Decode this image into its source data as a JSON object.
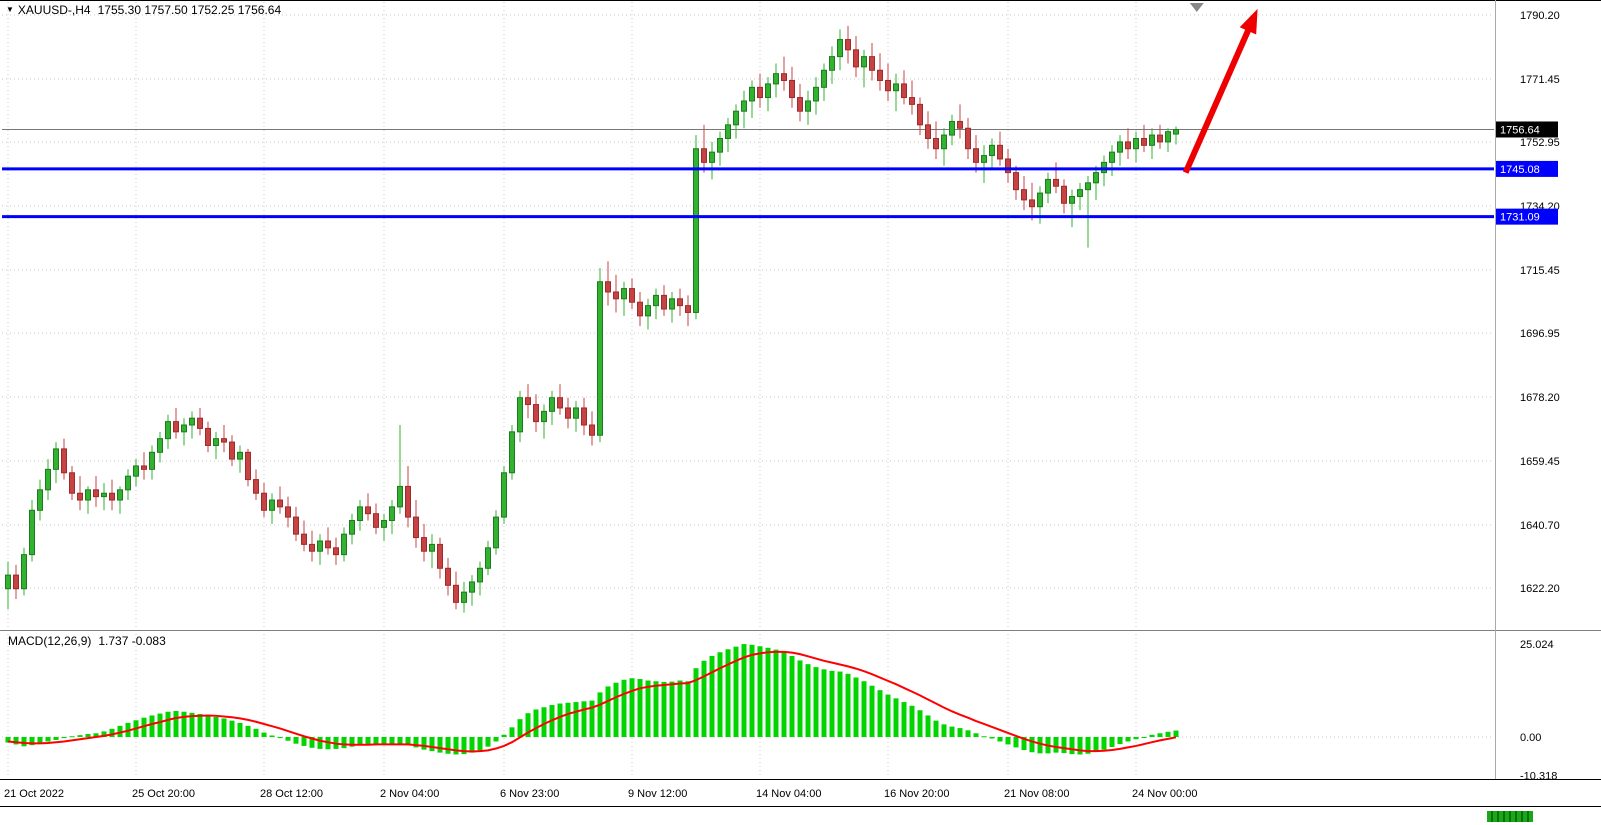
{
  "window": {
    "marker_icon": "▼",
    "symbol_period": "XAUUSD-,H4",
    "ohlc": "1755.30 1757.50 1752.25 1756.64"
  },
  "indicator": {
    "label": "MACD(12,26,9)",
    "values": "1.737 -0.083"
  },
  "colors": {
    "bull": "#31b331",
    "bull_border": "#1d7a1d",
    "bear": "#c74343",
    "bear_border": "#9e2b2b",
    "hline": "#0000ff",
    "current_tag_bg": "#000000",
    "macd_hist": "#00d500",
    "macd_signal": "#ff0000",
    "arrow": "#ee0000"
  },
  "price_axis": {
    "ticks": [
      "1790.20",
      "1771.45",
      "1752.95",
      "1734.20",
      "1715.45",
      "1696.95",
      "1678.20",
      "1659.45",
      "1640.70",
      "1622.20"
    ],
    "current": {
      "value": 1756.64,
      "label": "1756.64"
    }
  },
  "macd_axis": {
    "ticks": [
      {
        "value": 25.024,
        "label": "25.024"
      },
      {
        "value": 0,
        "label": "0.00"
      },
      {
        "value": -10.318,
        "label": "-10.318"
      }
    ]
  },
  "h_lines": [
    {
      "value": 1745.08,
      "label": "1745.08"
    },
    {
      "value": 1731.09,
      "label": "1731.09"
    }
  ],
  "x_axis": {
    "ticks": [
      {
        "i": 0,
        "label": "21 Oct 2022"
      },
      {
        "i": 16,
        "label": "25 Oct 20:00"
      },
      {
        "i": 32,
        "label": "28 Oct 12:00"
      },
      {
        "i": 47,
        "label": "2 Nov 04:00"
      },
      {
        "i": 62,
        "label": "6 Nov 23:00"
      },
      {
        "i": 78,
        "label": "9 Nov 12:00"
      },
      {
        "i": 94,
        "label": "14 Nov 04:00"
      },
      {
        "i": 110,
        "label": "16 Nov 20:00"
      },
      {
        "i": 125,
        "label": "21 Nov 08:00"
      },
      {
        "i": 141,
        "label": "24 Nov 00:00"
      }
    ]
  },
  "annotations": {
    "arrow": {
      "from_index": 147.2,
      "from_price": 1744,
      "to_index": 156.2,
      "to_price": 1792
    },
    "shift_marker": {
      "index": 148.6
    }
  },
  "chart_data": {
    "type": "candlestick",
    "title": "XAUUSD-,H4",
    "x_unit": "H4 candles, 21 Oct 2022 - 24 Nov 2022",
    "ylim_main": [
      1610,
      1795
    ],
    "ylim_macd": [
      -10.318,
      25.024
    ],
    "grid": true,
    "candles": [
      [
        1622,
        1630,
        1616,
        1626
      ],
      [
        1626,
        1629,
        1619,
        1622
      ],
      [
        1622,
        1634,
        1620,
        1632
      ],
      [
        1632,
        1648,
        1630,
        1645
      ],
      [
        1645,
        1654,
        1642,
        1651
      ],
      [
        1651,
        1660,
        1648,
        1657
      ],
      [
        1657,
        1665,
        1653,
        1663
      ],
      [
        1663,
        1666,
        1654,
        1656
      ],
      [
        1656,
        1658,
        1648,
        1650
      ],
      [
        1650,
        1655,
        1645,
        1648
      ],
      [
        1648,
        1652,
        1644,
        1651
      ],
      [
        1651,
        1655,
        1646,
        1649
      ],
      [
        1649,
        1653,
        1645,
        1650
      ],
      [
        1650,
        1654,
        1645,
        1648
      ],
      [
        1648,
        1652,
        1644,
        1651
      ],
      [
        1651,
        1657,
        1648,
        1655
      ],
      [
        1655,
        1660,
        1652,
        1658
      ],
      [
        1658,
        1662,
        1654,
        1657
      ],
      [
        1657,
        1664,
        1654,
        1662
      ],
      [
        1662,
        1668,
        1659,
        1666
      ],
      [
        1666,
        1673,
        1663,
        1671
      ],
      [
        1671,
        1675,
        1666,
        1668
      ],
      [
        1668,
        1672,
        1664,
        1670
      ],
      [
        1670,
        1674,
        1666,
        1672
      ],
      [
        1672,
        1675,
        1667,
        1669
      ],
      [
        1669,
        1671,
        1662,
        1664
      ],
      [
        1664,
        1668,
        1660,
        1666
      ],
      [
        1666,
        1670,
        1662,
        1665
      ],
      [
        1665,
        1667,
        1658,
        1660
      ],
      [
        1660,
        1664,
        1656,
        1662
      ],
      [
        1662,
        1663,
        1652,
        1654
      ],
      [
        1654,
        1657,
        1648,
        1650
      ],
      [
        1650,
        1653,
        1643,
        1645
      ],
      [
        1645,
        1650,
        1641,
        1648
      ],
      [
        1648,
        1652,
        1644,
        1646
      ],
      [
        1646,
        1649,
        1640,
        1643
      ],
      [
        1643,
        1646,
        1636,
        1638
      ],
      [
        1638,
        1642,
        1633,
        1635
      ],
      [
        1635,
        1639,
        1630,
        1633
      ],
      [
        1633,
        1638,
        1629,
        1636
      ],
      [
        1636,
        1640,
        1632,
        1634
      ],
      [
        1634,
        1637,
        1629,
        1632
      ],
      [
        1632,
        1640,
        1630,
        1638
      ],
      [
        1638,
        1644,
        1635,
        1642
      ],
      [
        1642,
        1648,
        1639,
        1646
      ],
      [
        1646,
        1650,
        1642,
        1644
      ],
      [
        1644,
        1647,
        1638,
        1640
      ],
      [
        1640,
        1644,
        1636,
        1642
      ],
      [
        1642,
        1648,
        1638,
        1646
      ],
      [
        1646,
        1670,
        1644,
        1652
      ],
      [
        1652,
        1658,
        1640,
        1643
      ],
      [
        1643,
        1648,
        1634,
        1637
      ],
      [
        1637,
        1641,
        1630,
        1633
      ],
      [
        1633,
        1638,
        1628,
        1635
      ],
      [
        1635,
        1637,
        1625,
        1628
      ],
      [
        1628,
        1631,
        1620,
        1623
      ],
      [
        1623,
        1627,
        1616,
        1618
      ],
      [
        1618,
        1624,
        1615,
        1621
      ],
      [
        1621,
        1626,
        1617,
        1624
      ],
      [
        1624,
        1630,
        1620,
        1628
      ],
      [
        1628,
        1636,
        1626,
        1634
      ],
      [
        1634,
        1645,
        1632,
        1643
      ],
      [
        1643,
        1658,
        1641,
        1656
      ],
      [
        1656,
        1670,
        1654,
        1668
      ],
      [
        1668,
        1680,
        1665,
        1678
      ],
      [
        1678,
        1682,
        1672,
        1676
      ],
      [
        1676,
        1679,
        1668,
        1671
      ],
      [
        1671,
        1676,
        1666,
        1674
      ],
      [
        1674,
        1680,
        1670,
        1678
      ],
      [
        1678,
        1682,
        1673,
        1675
      ],
      [
        1675,
        1678,
        1669,
        1672
      ],
      [
        1672,
        1677,
        1668,
        1675
      ],
      [
        1675,
        1678,
        1667,
        1670
      ],
      [
        1670,
        1674,
        1664,
        1667
      ],
      [
        1667,
        1716,
        1665,
        1712
      ],
      [
        1712,
        1718,
        1705,
        1709
      ],
      [
        1709,
        1714,
        1703,
        1707
      ],
      [
        1707,
        1712,
        1702,
        1710
      ],
      [
        1710,
        1713,
        1704,
        1706
      ],
      [
        1706,
        1709,
        1699,
        1702
      ],
      [
        1702,
        1707,
        1698,
        1705
      ],
      [
        1705,
        1710,
        1701,
        1708
      ],
      [
        1708,
        1711,
        1702,
        1704
      ],
      [
        1704,
        1709,
        1700,
        1707
      ],
      [
        1707,
        1710,
        1702,
        1705
      ],
      [
        1705,
        1708,
        1699,
        1703
      ],
      [
        1703,
        1755,
        1701,
        1751
      ],
      [
        1751,
        1758,
        1744,
        1747
      ],
      [
        1747,
        1753,
        1742,
        1750
      ],
      [
        1750,
        1756,
        1746,
        1754
      ],
      [
        1754,
        1760,
        1750,
        1758
      ],
      [
        1758,
        1764,
        1754,
        1762
      ],
      [
        1762,
        1768,
        1757,
        1765
      ],
      [
        1765,
        1771,
        1760,
        1769
      ],
      [
        1769,
        1773,
        1763,
        1766
      ],
      [
        1766,
        1772,
        1762,
        1770
      ],
      [
        1770,
        1776,
        1766,
        1773
      ],
      [
        1773,
        1778,
        1768,
        1771
      ],
      [
        1771,
        1775,
        1763,
        1766
      ],
      [
        1766,
        1770,
        1759,
        1762
      ],
      [
        1762,
        1768,
        1758,
        1765
      ],
      [
        1765,
        1772,
        1761,
        1769
      ],
      [
        1769,
        1776,
        1765,
        1774
      ],
      [
        1774,
        1781,
        1770,
        1778
      ],
      [
        1778,
        1786,
        1774,
        1783
      ],
      [
        1783,
        1787,
        1776,
        1780
      ],
      [
        1780,
        1784,
        1772,
        1775
      ],
      [
        1775,
        1780,
        1769,
        1778
      ],
      [
        1778,
        1782,
        1771,
        1774
      ],
      [
        1774,
        1779,
        1768,
        1771
      ],
      [
        1771,
        1776,
        1765,
        1768
      ],
      [
        1768,
        1773,
        1762,
        1770
      ],
      [
        1770,
        1774,
        1764,
        1766
      ],
      [
        1766,
        1771,
        1761,
        1764
      ],
      [
        1764,
        1766,
        1755,
        1758
      ],
      [
        1758,
        1762,
        1751,
        1754
      ],
      [
        1754,
        1759,
        1748,
        1751
      ],
      [
        1751,
        1757,
        1746,
        1755
      ],
      [
        1755,
        1761,
        1752,
        1759
      ],
      [
        1759,
        1764,
        1754,
        1757
      ],
      [
        1757,
        1760,
        1748,
        1751
      ],
      [
        1751,
        1755,
        1744,
        1747
      ],
      [
        1747,
        1752,
        1741,
        1749
      ],
      [
        1749,
        1754,
        1745,
        1752
      ],
      [
        1752,
        1756,
        1746,
        1748
      ],
      [
        1748,
        1751,
        1741,
        1744
      ],
      [
        1744,
        1746,
        1736,
        1739
      ],
      [
        1739,
        1743,
        1733,
        1736
      ],
      [
        1736,
        1741,
        1730,
        1734
      ],
      [
        1734,
        1740,
        1729,
        1738
      ],
      [
        1738,
        1744,
        1735,
        1742
      ],
      [
        1742,
        1747,
        1738,
        1740
      ],
      [
        1740,
        1742,
        1732,
        1735
      ],
      [
        1735,
        1739,
        1728,
        1737
      ],
      [
        1737,
        1741,
        1733,
        1739
      ],
      [
        1739,
        1743,
        1722,
        1741
      ],
      [
        1741,
        1746,
        1736,
        1744
      ],
      [
        1744,
        1749,
        1740,
        1747
      ],
      [
        1747,
        1752,
        1743,
        1750
      ],
      [
        1750,
        1755,
        1746,
        1753
      ],
      [
        1753,
        1757,
        1748,
        1751
      ],
      [
        1751,
        1756,
        1747,
        1754
      ],
      [
        1754,
        1758,
        1750,
        1752
      ],
      [
        1752,
        1757,
        1748,
        1755
      ],
      [
        1755,
        1758,
        1751,
        1753
      ],
      [
        1753,
        1757,
        1750,
        1756
      ],
      [
        1755.3,
        1757.5,
        1752.25,
        1756.64
      ]
    ],
    "macd": [
      -1.5,
      -2.0,
      -2.5,
      -2.2,
      -1.8,
      -1.2,
      -0.8,
      -0.3,
      0.2,
      0.5,
      0.8,
      1.0,
      1.5,
      2.2,
      3.0,
      3.8,
      4.5,
      5.2,
      5.8,
      6.3,
      6.8,
      7.0,
      6.8,
      6.5,
      6.2,
      5.8,
      5.4,
      5.0,
      4.4,
      3.8,
      3.0,
      2.2,
      1.2,
      0.4,
      -0.3,
      -1.0,
      -1.8,
      -2.4,
      -2.9,
      -3.2,
      -3.3,
      -3.2,
      -3.0,
      -2.6,
      -2.2,
      -1.9,
      -1.8,
      -1.9,
      -2.0,
      -1.8,
      -2.2,
      -2.8,
      -3.4,
      -3.8,
      -4.2,
      -4.5,
      -4.7,
      -4.6,
      -4.2,
      -3.6,
      -2.6,
      -1.2,
      0.6,
      2.6,
      4.8,
      6.4,
      7.4,
      8.0,
      8.6,
      9.0,
      9.2,
      9.4,
      9.6,
      9.8,
      12.0,
      13.6,
      14.6,
      15.4,
      15.8,
      15.6,
      15.2,
      15.0,
      14.8,
      14.9,
      15.2,
      15.0,
      18.5,
      20.5,
      21.8,
      22.8,
      23.6,
      24.3,
      25.0,
      24.8,
      24.4,
      24.0,
      23.5,
      22.8,
      21.8,
      20.6,
      19.6,
      18.8,
      18.2,
      17.8,
      17.6,
      17.0,
      16.0,
      15.0,
      13.8,
      12.6,
      11.4,
      10.4,
      9.4,
      8.4,
      7.2,
      5.8,
      4.4,
      3.4,
      2.8,
      2.4,
      1.8,
      1.0,
      0.2,
      -0.4,
      -1.2,
      -2.0,
      -2.8,
      -3.5,
      -4.1,
      -4.4,
      -4.4,
      -4.2,
      -4.3,
      -4.6,
      -4.7,
      -4.5,
      -4.0,
      -3.4,
      -2.7,
      -1.9,
      -1.2,
      -0.6,
      0.0,
      0.6,
      1.0,
      1.4,
      1.737
    ],
    "signal": [
      -1.2,
      -1.4,
      -1.6,
      -1.7,
      -1.7,
      -1.6,
      -1.4,
      -1.2,
      -0.9,
      -0.6,
      -0.3,
      0.0,
      0.3,
      0.7,
      1.2,
      1.7,
      2.3,
      2.9,
      3.5,
      4.0,
      4.6,
      5.1,
      5.4,
      5.6,
      5.7,
      5.8,
      5.7,
      5.5,
      5.3,
      5.0,
      4.6,
      4.1,
      3.5,
      2.9,
      2.3,
      1.6,
      0.9,
      0.2,
      -0.4,
      -1.0,
      -1.4,
      -1.8,
      -2.0,
      -2.1,
      -2.1,
      -2.1,
      -2.0,
      -2.0,
      -2.0,
      -2.0,
      -2.0,
      -2.2,
      -2.4,
      -2.7,
      -3.0,
      -3.3,
      -3.6,
      -3.8,
      -3.9,
      -3.8,
      -3.6,
      -3.1,
      -2.4,
      -1.4,
      -0.1,
      1.2,
      2.4,
      3.5,
      4.5,
      5.4,
      6.2,
      6.8,
      7.4,
      7.9,
      8.7,
      9.7,
      10.7,
      11.6,
      12.4,
      13.1,
      13.5,
      13.8,
      14.0,
      14.2,
      14.4,
      14.5,
      15.3,
      16.3,
      17.4,
      18.5,
      19.5,
      20.5,
      21.4,
      22.1,
      22.5,
      22.8,
      22.9,
      22.9,
      22.7,
      22.3,
      21.7,
      21.1,
      20.5,
      20.0,
      19.5,
      19.0,
      18.4,
      17.7,
      16.9,
      16.0,
      15.1,
      14.2,
      13.2,
      12.2,
      11.2,
      10.1,
      9.0,
      7.9,
      6.9,
      6.0,
      5.2,
      4.3,
      3.5,
      2.7,
      1.9,
      1.1,
      0.3,
      -0.5,
      -1.2,
      -1.8,
      -2.3,
      -2.7,
      -3.0,
      -3.3,
      -3.6,
      -3.8,
      -3.8,
      -3.7,
      -3.5,
      -3.2,
      -2.8,
      -2.4,
      -1.9,
      -1.4,
      -0.9,
      -0.5,
      -0.083
    ]
  }
}
